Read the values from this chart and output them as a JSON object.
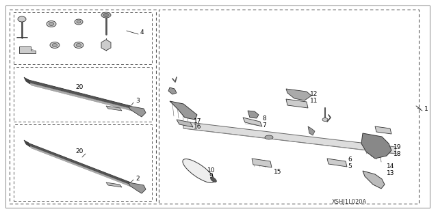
{
  "background_color": "#ffffff",
  "line_color": "#333333",
  "fill_color": "#cccccc",
  "dark_fill": "#888888",
  "watermark": "XSHJ1L020A",
  "figsize": [
    6.4,
    3.19
  ],
  "dpi": 100
}
